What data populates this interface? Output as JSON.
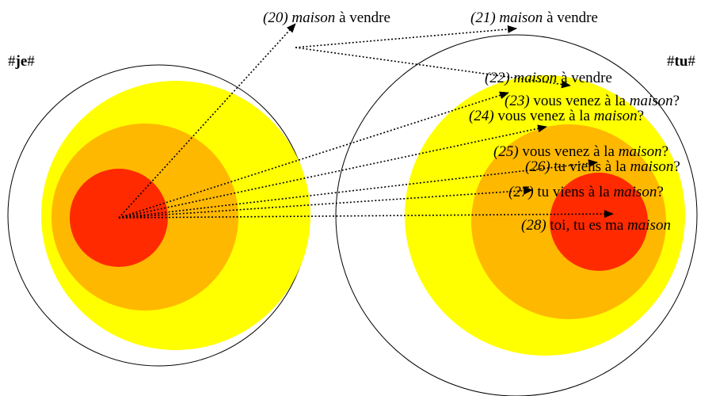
{
  "colors": {
    "outer": "#ffff00",
    "middle": "#ffb800",
    "inner": "#ff2a00",
    "line": "#000000"
  },
  "speakers": {
    "je": {
      "hash_left": "#",
      "word": "je",
      "hash_right": "#"
    },
    "tu": {
      "hash_left": "#",
      "word": "tu",
      "hash_right": "#"
    }
  },
  "examples": [
    {
      "num": "(20)",
      "w1": "maison",
      "rest": " à vendre"
    },
    {
      "num": "(21)",
      "w1": "maison",
      "rest": " à vendre"
    },
    {
      "num": "(22)",
      "w1": "maison",
      "rest": " à vendre"
    },
    {
      "num": "(23)",
      "pre": " vous venez à la ",
      "w1": "maison",
      "rest": "?"
    },
    {
      "num": "(24)",
      "pre": " vous venez à la ",
      "w1": "maison",
      "rest": "?"
    },
    {
      "num": "(25)",
      "pre": " vous venez à la ",
      "w1": "maison",
      "rest": "?"
    },
    {
      "num": "(26)",
      "pre": " tu viens à la ",
      "w1": "maison",
      "rest": "?"
    },
    {
      "num": "(27)",
      "pre": " tu viens à la ",
      "w1": "maison",
      "rest": "?"
    },
    {
      "num": "(28)",
      "pre": " toi, tu es ma ",
      "w1": "maison",
      "rest": ""
    }
  ]
}
